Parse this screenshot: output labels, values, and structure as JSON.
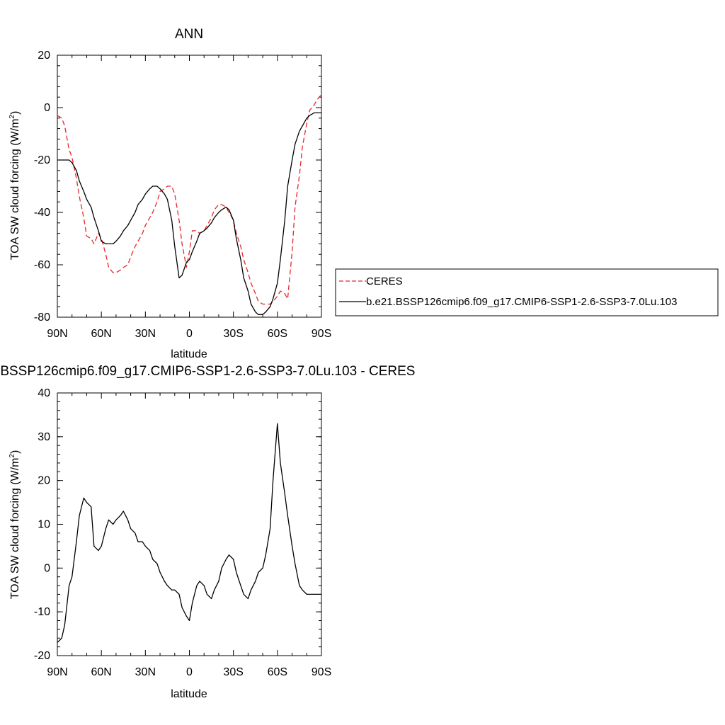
{
  "chart_data": [
    {
      "type": "line",
      "title": "ANN",
      "xlabel": "latitude",
      "ylabel": "TOA SW cloud forcing (W/m",
      "ylabel_sup": "2",
      "ylabel_close": ")",
      "xlim": [
        90,
        -90
      ],
      "ylim": [
        -80,
        20
      ],
      "xticks": [
        {
          "v": 90,
          "label": "90N"
        },
        {
          "v": 60,
          "label": "60N"
        },
        {
          "v": 30,
          "label": "30N"
        },
        {
          "v": 0,
          "label": "0"
        },
        {
          "v": -30,
          "label": "30S"
        },
        {
          "v": -60,
          "label": "60S"
        },
        {
          "v": -90,
          "label": "90S"
        }
      ],
      "yticks": [
        20,
        0,
        -20,
        -40,
        -60,
        -80
      ],
      "legend": {
        "placement": "right-outside",
        "entries": [
          {
            "label": "CERES",
            "color": "#e8262b",
            "dash": true
          },
          {
            "label": "b.e21.BSSP126cmip6.f09_g17.CMIP6-SSP1-2.6-SSP3-7.0Lu.103",
            "color": "#000000",
            "dash": false
          }
        ]
      },
      "series": [
        {
          "name": "CERES",
          "color": "#e8262b",
          "dash": true,
          "x": [
            90,
            87,
            85,
            82,
            80,
            77,
            75,
            72,
            70,
            67,
            65,
            62,
            60,
            57,
            55,
            52,
            50,
            47,
            45,
            42,
            40,
            37,
            35,
            32,
            30,
            27,
            25,
            22,
            20,
            17,
            15,
            12,
            10,
            7,
            5,
            2,
            0,
            -2,
            -5,
            -7,
            -10,
            -12,
            -15,
            -17,
            -20,
            -22,
            -25,
            -27,
            -30,
            -32,
            -35,
            -37,
            -40,
            -42,
            -45,
            -47,
            -50,
            -52,
            -55,
            -57,
            -60,
            -62,
            -65,
            -67,
            -70,
            -72,
            -75,
            -77,
            -80,
            -82,
            -85,
            -87,
            -90
          ],
          "y": [
            -3,
            -4,
            -7,
            -16,
            -19,
            -27,
            -34,
            -42,
            -49,
            -50,
            -52,
            -48,
            -50,
            -56,
            -61,
            -63,
            -63,
            -62,
            -61,
            -60,
            -57,
            -53,
            -51,
            -48,
            -45,
            -42,
            -40,
            -36,
            -32,
            -31,
            -30,
            -30,
            -33,
            -43,
            -52,
            -61,
            -55,
            -47,
            -47,
            -48,
            -47,
            -45,
            -42,
            -39,
            -37,
            -37,
            -38,
            -40,
            -43,
            -48,
            -53,
            -58,
            -63,
            -67,
            -71,
            -74,
            -75,
            -75,
            -75,
            -74,
            -72,
            -70,
            -71,
            -73,
            -55,
            -38,
            -26,
            -15,
            -6,
            -1,
            1,
            3,
            5
          ]
        },
        {
          "name": "b.e21.BSSP126cmip6.f09_g17.CMIP6-SSP1-2.6-SSP3-7.0Lu.103",
          "color": "#000000",
          "dash": false,
          "x": [
            90,
            87,
            85,
            82,
            80,
            77,
            75,
            72,
            70,
            67,
            65,
            62,
            60,
            57,
            55,
            52,
            50,
            47,
            45,
            42,
            40,
            37,
            35,
            32,
            30,
            27,
            25,
            22,
            20,
            17,
            15,
            12,
            10,
            7,
            5,
            2,
            0,
            -2,
            -5,
            -7,
            -10,
            -12,
            -15,
            -17,
            -20,
            -22,
            -25,
            -27,
            -30,
            -32,
            -35,
            -37,
            -40,
            -42,
            -45,
            -47,
            -50,
            -52,
            -55,
            -57,
            -60,
            -62,
            -65,
            -67,
            -70,
            -72,
            -75,
            -77,
            -80,
            -82,
            -85,
            -87,
            -90
          ],
          "y": [
            -20,
            -20,
            -20,
            -20,
            -21,
            -24,
            -28,
            -32,
            -35,
            -38,
            -42,
            -47,
            -51,
            -52,
            -52,
            -52,
            -51,
            -49,
            -47,
            -45,
            -43,
            -40,
            -37,
            -35,
            -33,
            -31,
            -30,
            -30,
            -31,
            -33,
            -35,
            -43,
            -53,
            -65,
            -64,
            -59,
            -58,
            -55,
            -51,
            -48,
            -47,
            -46,
            -44,
            -42,
            -40,
            -39,
            -38,
            -39,
            -43,
            -50,
            -58,
            -65,
            -70,
            -75,
            -78,
            -79,
            -79,
            -78,
            -76,
            -73,
            -67,
            -58,
            -43,
            -30,
            -20,
            -14,
            -9,
            -7,
            -4,
            -3,
            -2,
            -2,
            -2
          ]
        }
      ]
    },
    {
      "type": "line",
      "title": "b.e21.BSSP126cmip6.f09_g17.CMIP6-SSP1-2.6-SSP3-7.0Lu.103 - CERES",
      "xlabel": "latitude",
      "ylabel": "TOA SW cloud forcing (W/m",
      "ylabel_sup": "2",
      "ylabel_close": ")",
      "xlim": [
        90,
        -90
      ],
      "ylim": [
        -20,
        40
      ],
      "xticks": [
        {
          "v": 90,
          "label": "90N"
        },
        {
          "v": 60,
          "label": "60N"
        },
        {
          "v": 30,
          "label": "30N"
        },
        {
          "v": 0,
          "label": "0"
        },
        {
          "v": -30,
          "label": "30S"
        },
        {
          "v": -60,
          "label": "60S"
        },
        {
          "v": -90,
          "label": "90S"
        }
      ],
      "yticks": [
        40,
        30,
        20,
        10,
        0,
        -10,
        -20
      ],
      "series": [
        {
          "color": "#000000",
          "dash": false,
          "x": [
            90,
            87,
            85,
            82,
            80,
            77,
            75,
            72,
            70,
            67,
            65,
            62,
            60,
            57,
            55,
            52,
            50,
            47,
            45,
            42,
            40,
            37,
            35,
            32,
            30,
            27,
            25,
            22,
            20,
            17,
            15,
            12,
            10,
            7,
            5,
            2,
            0,
            -2,
            -5,
            -7,
            -10,
            -12,
            -15,
            -17,
            -20,
            -22,
            -25,
            -27,
            -30,
            -32,
            -35,
            -37,
            -40,
            -42,
            -45,
            -47,
            -50,
            -52,
            -55,
            -57,
            -60,
            -62,
            -65,
            -67,
            -70,
            -72,
            -75,
            -77,
            -80,
            -82,
            -85,
            -87,
            -90
          ],
          "y": [
            -17,
            -16,
            -13,
            -4,
            -2,
            6,
            12,
            16,
            15,
            14,
            5,
            4,
            5,
            9,
            11,
            10,
            11,
            12,
            13,
            11,
            9,
            8,
            6,
            6,
            5,
            4,
            2,
            1,
            -1,
            -3,
            -4,
            -5,
            -5,
            -6,
            -9,
            -11,
            -12,
            -8,
            -4,
            -3,
            -4,
            -6,
            -7,
            -5,
            -3,
            0,
            2,
            3,
            2,
            -1,
            -4,
            -6,
            -7,
            -5,
            -3,
            -1,
            0,
            3,
            9,
            20,
            33,
            24,
            17,
            12,
            5,
            1,
            -4,
            -5,
            -6,
            -6,
            -6,
            -6,
            -6
          ]
        }
      ]
    }
  ]
}
